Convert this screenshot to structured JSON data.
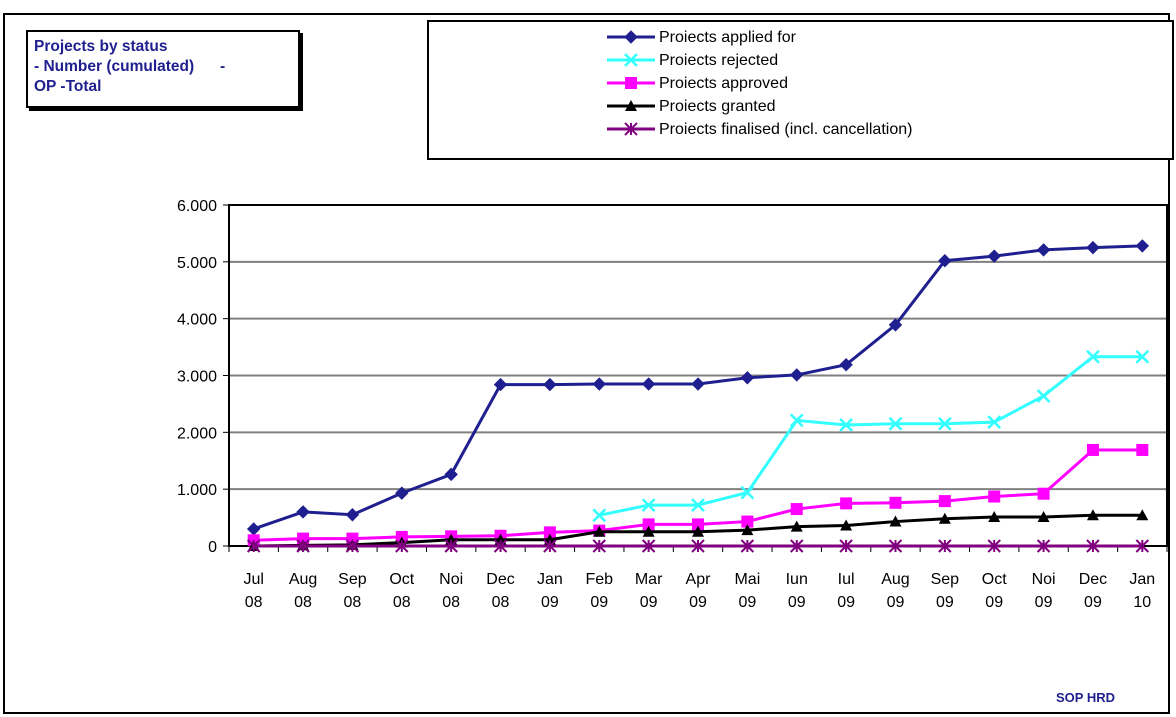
{
  "title_lines": [
    "Projects by status",
    "- Number (cumulated)      -",
    "OP -Total"
  ],
  "source": "SOP HRD",
  "colors": {
    "applied": "#1f1f8f",
    "rejected": "#33ffff",
    "approved": "#ff00ff",
    "granted": "#000000",
    "finalised": "#800080",
    "grid": "#808080"
  },
  "chart_data": {
    "type": "line",
    "categories": [
      [
        "Jul",
        "08"
      ],
      [
        "Aug",
        "08"
      ],
      [
        "Sep",
        "08"
      ],
      [
        "Oct",
        "08"
      ],
      [
        "Noi",
        "08"
      ],
      [
        "Dec",
        "08"
      ],
      [
        "Jan",
        "09"
      ],
      [
        "Feb",
        "09"
      ],
      [
        "Mar",
        "09"
      ],
      [
        "Apr",
        "09"
      ],
      [
        "Mai",
        "09"
      ],
      [
        "Iun",
        "09"
      ],
      [
        "Iul",
        "09"
      ],
      [
        "Aug",
        "09"
      ],
      [
        "Sep",
        "09"
      ],
      [
        "Oct",
        "09"
      ],
      [
        "Noi",
        "09"
      ],
      [
        "Dec",
        "09"
      ],
      [
        "Jan",
        "10"
      ]
    ],
    "ylim": [
      0,
      6000
    ],
    "yticks": [
      0,
      1000,
      2000,
      3000,
      4000,
      5000,
      6000
    ],
    "ytick_labels": [
      "0",
      "1.000",
      "2.000",
      "3.000",
      "4.000",
      "5.000",
      "6.000"
    ],
    "grid": true,
    "legend_position": "top-right",
    "series": [
      {
        "key": "applied",
        "name": "Proiects applied for",
        "marker": "diamond",
        "values": [
          300,
          600,
          550,
          930,
          1260,
          2840,
          2840,
          2850,
          2850,
          2850,
          2960,
          3010,
          3190,
          3890,
          5020,
          5100,
          5210,
          5250,
          5280
        ]
      },
      {
        "key": "rejected",
        "name": "Proiects rejected",
        "marker": "x",
        "values": [
          null,
          null,
          null,
          null,
          null,
          null,
          null,
          540,
          720,
          720,
          940,
          2210,
          2130,
          2150,
          2150,
          2180,
          2640,
          3330,
          3330
        ]
      },
      {
        "key": "approved",
        "name": "Proiects approved",
        "marker": "square",
        "values": [
          100,
          130,
          130,
          160,
          170,
          180,
          240,
          270,
          380,
          380,
          430,
          650,
          750,
          760,
          790,
          870,
          920,
          1690,
          1690
        ]
      },
      {
        "key": "granted",
        "name": "Proiects granted",
        "marker": "triangle",
        "values": [
          0,
          10,
          20,
          60,
          110,
          110,
          110,
          250,
          250,
          250,
          280,
          340,
          360,
          430,
          480,
          510,
          510,
          540,
          540
        ]
      },
      {
        "key": "finalised",
        "name": "Proiects finalised (incl. cancellation)",
        "marker": "star",
        "values": [
          0,
          0,
          0,
          0,
          0,
          0,
          0,
          0,
          0,
          0,
          0,
          0,
          0,
          0,
          0,
          0,
          0,
          0,
          0
        ]
      }
    ]
  }
}
